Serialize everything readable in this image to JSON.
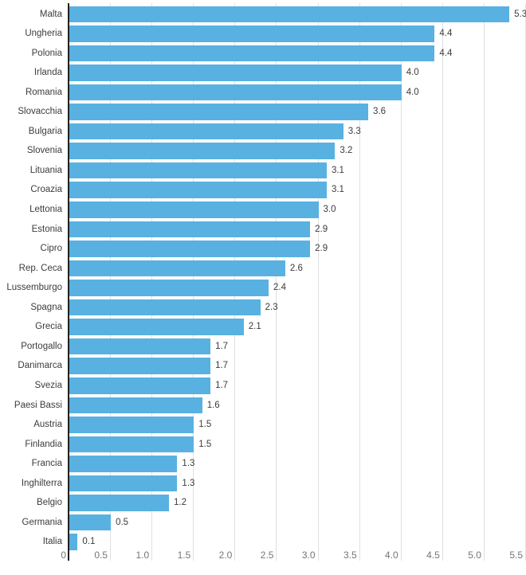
{
  "chart_data": {
    "type": "bar",
    "orientation": "horizontal",
    "title": "",
    "xlabel": "",
    "ylabel": "",
    "categories": [
      "Malta",
      "Ungheria",
      "Polonia",
      "Irlanda",
      "Romania",
      "Slovacchia",
      "Bulgaria",
      "Slovenia",
      "Lituania",
      "Croazia",
      "Lettonia",
      "Estonia",
      "Cipro",
      "Rep. Ceca",
      "Lussemburgo",
      "Spagna",
      "Grecia",
      "Portogallo",
      "Danimarca",
      "Svezia",
      "Paesi Bassi",
      "Austria",
      "Finlandia",
      "Francia",
      "Inghilterra",
      "Belgio",
      "Germania",
      "Italia"
    ],
    "values": [
      5.3,
      4.4,
      4.4,
      4.0,
      4.0,
      3.6,
      3.3,
      3.2,
      3.1,
      3.1,
      3.0,
      2.9,
      2.9,
      2.6,
      2.4,
      2.3,
      2.1,
      1.7,
      1.7,
      1.7,
      1.6,
      1.5,
      1.5,
      1.3,
      1.3,
      1.2,
      0.5,
      0.1
    ],
    "value_labels": [
      "5.3",
      "4.4",
      "4.4",
      "4.0",
      "4.0",
      "3.6",
      "3.3",
      "3.2",
      "3.1",
      "3.1",
      "3.0",
      "2.9",
      "2.9",
      "2.6",
      "2.4",
      "2.3",
      "2.1",
      "1.7",
      "1.7",
      "1.7",
      "1.6",
      "1.5",
      "1.5",
      "1.3",
      "1.3",
      "1.2",
      "0.5",
      "0.1"
    ],
    "xlim": [
      0,
      5.5
    ],
    "x_tick_values": [
      0,
      0.5,
      1.0,
      1.5,
      2.0,
      2.5,
      3.0,
      3.5,
      4.0,
      4.5,
      5.0,
      5.5
    ],
    "x_ticks": [
      "0",
      "0.5",
      "1.0",
      "1.5",
      "2.0",
      "2.5",
      "3.0",
      "3.5",
      "4.0",
      "4.5",
      "5.0",
      "5.5"
    ],
    "grid": true,
    "legend": "none",
    "colors": {
      "bar": "#58b1e1",
      "axis": "#212121",
      "gridline": "#e0e0e0",
      "label": "#3c3c3c",
      "tick_label": "#757575",
      "background": "#ffffff"
    }
  }
}
